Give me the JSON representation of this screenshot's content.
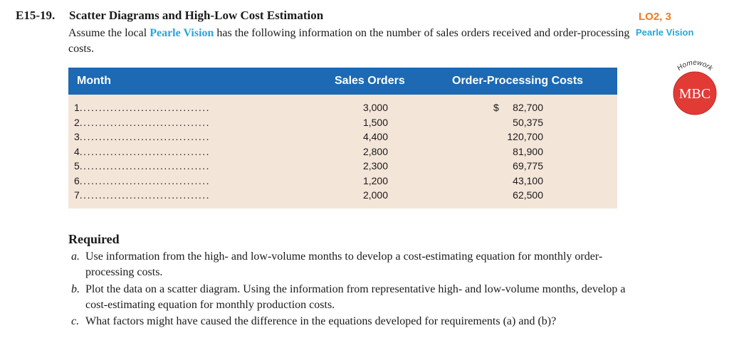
{
  "exercise": {
    "number": "E15-19.",
    "title": "Scatter Diagrams and High-Low Cost Estimation",
    "intro_before": "Assume the local ",
    "intro_highlight": "Pearle Vision",
    "intro_after": " has the following information on the number of sales orders received and order-processing costs."
  },
  "margin": {
    "learning_objectives": "LO2, 3",
    "company": "Pearle Vision",
    "badge_top": "Homework",
    "badge_text": "MBC"
  },
  "table": {
    "headers": {
      "month": "Month",
      "orders": "Sales Orders",
      "costs": "Order-Processing Costs"
    },
    "leader": "..................................",
    "currency_symbol": "$",
    "rows": [
      {
        "month": "1",
        "orders": "3,000",
        "costs": "82,700"
      },
      {
        "month": "2",
        "orders": "1,500",
        "costs": "50,375"
      },
      {
        "month": "3",
        "orders": "4,400",
        "costs": "120,700"
      },
      {
        "month": "4",
        "orders": "2,800",
        "costs": "81,900"
      },
      {
        "month": "5",
        "orders": "2,300",
        "costs": "69,775"
      },
      {
        "month": "6",
        "orders": "1,200",
        "costs": "43,100"
      },
      {
        "month": "7",
        "orders": "2,000",
        "costs": "62,500"
      }
    ]
  },
  "required": {
    "heading": "Required",
    "items": [
      {
        "letter": "a.",
        "text": "Use information from the high- and low-volume months to develop a cost-estimating equation for monthly order-processing costs."
      },
      {
        "letter": "b.",
        "text": "Plot the data on a scatter diagram. Using the information from representative high- and low-volume months, develop a cost-estimating equation for monthly production costs."
      },
      {
        "letter": "c.",
        "text": "What factors might have caused the difference in the equations developed for requirements (a) and (b)?"
      }
    ]
  },
  "colors": {
    "accent_cyan": "#29a6d9",
    "lo_orange": "#f07a1e",
    "table_header_blue": "#1d69b3",
    "table_body_tan": "#f4e5d9",
    "badge_red": "#e23b36"
  }
}
